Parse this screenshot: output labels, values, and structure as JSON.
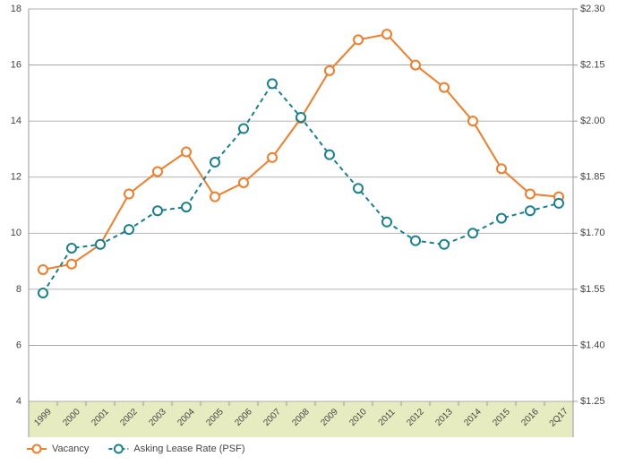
{
  "chart_data": {
    "type": "line",
    "categories": [
      "1999",
      "2000",
      "2001",
      "2002",
      "2003",
      "2004",
      "2005",
      "2006",
      "2007",
      "2008",
      "2009",
      "2010",
      "2011",
      "2012",
      "2013",
      "2014",
      "2015",
      "2016",
      "2Q17"
    ],
    "highlight_last_category_color": "#f07d2a",
    "series": [
      {
        "name": "Vacancy",
        "color": "#f07d2a",
        "dashed": false,
        "values": [
          8.7,
          8.9,
          9.6,
          11.4,
          12.2,
          12.9,
          11.3,
          11.8,
          12.7,
          14.1,
          15.8,
          16.9,
          17.1,
          16.0,
          15.2,
          14.0,
          12.3,
          11.4,
          11.3
        ]
      },
      {
        "name": "Asking Lease Rate (PSF)",
        "color": "#1a7f8e",
        "dashed": true,
        "axis": "y2",
        "values": [
          1.54,
          1.66,
          1.67,
          1.71,
          1.76,
          1.77,
          1.89,
          1.98,
          2.1,
          2.01,
          1.91,
          1.82,
          1.73,
          1.68,
          1.67,
          1.7,
          1.74,
          1.76,
          1.78
        ]
      }
    ],
    "ylim": [
      4,
      18
    ],
    "yticks": [
      4,
      6,
      8,
      10,
      12,
      14,
      16,
      18
    ],
    "y2lim": [
      1.25,
      2.3
    ],
    "y2ticks": [
      {
        "value": 1.25,
        "label": "$1.25"
      },
      {
        "value": 1.4,
        "label": "$1.40"
      },
      {
        "value": 1.55,
        "label": "$1.55"
      },
      {
        "value": 1.7,
        "label": "$1.70"
      },
      {
        "value": 1.85,
        "label": "$1.85"
      },
      {
        "value": 2.0,
        "label": "$2.00"
      },
      {
        "value": 2.15,
        "label": "$2.15"
      },
      {
        "value": 2.3,
        "label": "$2.30"
      }
    ],
    "grid": true
  }
}
